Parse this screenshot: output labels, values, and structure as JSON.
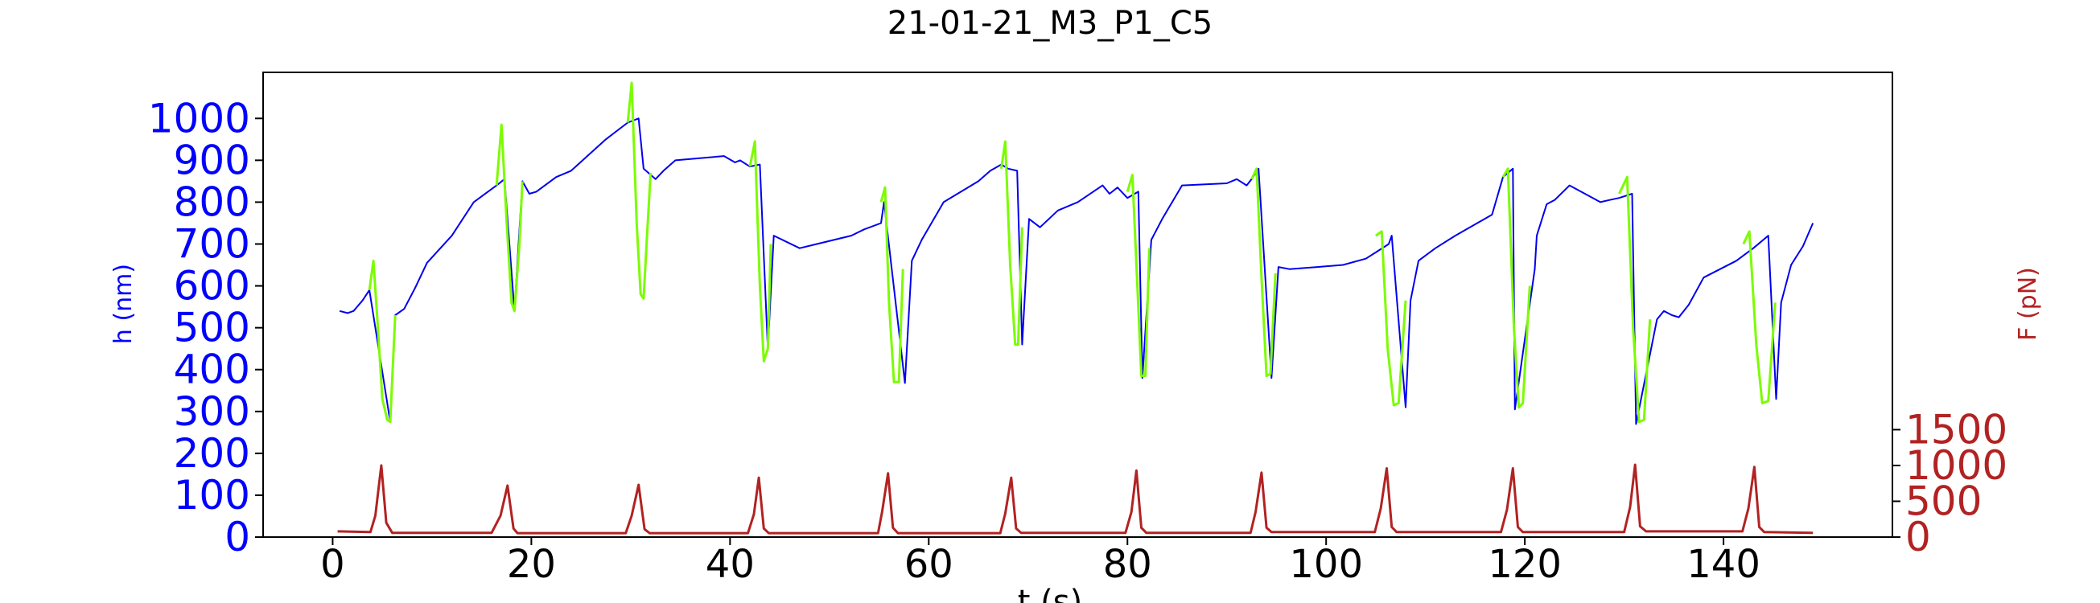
{
  "chart_data": {
    "type": "line",
    "title": "21-01-21_M3_P1_C5",
    "xlabel": "t (s)",
    "ylabel_left": "h (nm)",
    "ylabel_right": "F (pN)",
    "xlim": [
      -7,
      157
    ],
    "ylim_left": [
      0,
      1110
    ],
    "ylim_right": [
      0,
      6490
    ],
    "x_ticks": [
      "0",
      "20",
      "40",
      "60",
      "80",
      "100",
      "120",
      "140"
    ],
    "y_left_ticks": [
      "0",
      "100",
      "200",
      "300",
      "400",
      "500",
      "600",
      "700",
      "800",
      "900",
      "1000"
    ],
    "y_right_ticks": [
      "0",
      "500",
      "1000",
      "1500"
    ],
    "grid": false,
    "colors": {
      "height": "#0000ee",
      "height_pulse": "#7cfc00",
      "force": "#b22222",
      "left_axis": "#0000ff",
      "right_axis": "#b22222"
    },
    "series": [
      {
        "axis": "left",
        "color": "#0000ee",
        "x": [
          0.7,
          1.5,
          2.1,
          3.0,
          3.7,
          5.8,
          6.3,
          7.2,
          8.3,
          9.5,
          12,
          14.2,
          16.5,
          17.3,
          18.3,
          19.1,
          19.8,
          20.5,
          22.5,
          24,
          27.5,
          29.7,
          30.8,
          31.3,
          32.5,
          33.3,
          34.5,
          39.4,
          40.5,
          41,
          42,
          43.0,
          43.8,
          44.4,
          47,
          52.2,
          53.5,
          55.2,
          55.5,
          57.6,
          58.3,
          59.3,
          61.5,
          65,
          66.2,
          67.3,
          68.0,
          68.9,
          69.4,
          70.1,
          71.2,
          73,
          75,
          77.5,
          78.2,
          79,
          80,
          81.1,
          81.5,
          82.4,
          83.5,
          85.5,
          90,
          91,
          92,
          92.5,
          93.2,
          94.5,
          95.2,
          96.3,
          99.1,
          101.7,
          104,
          105,
          106.3,
          106.6,
          108.0,
          108.5,
          109.3,
          111,
          113,
          116.7,
          117.8,
          118.8,
          119.0,
          121.0,
          121.2,
          122.2,
          123.0,
          124.5,
          127.6,
          128.5,
          129.5,
          130.8,
          131.2,
          133.3,
          134,
          134.8,
          135.5,
          136.5,
          138,
          141.3,
          143,
          144.5,
          145.3,
          145.8,
          146.8,
          148,
          149.0
        ],
        "y": [
          540,
          535,
          540,
          565,
          590,
          275,
          530,
          545,
          595,
          655,
          720,
          800,
          840,
          855,
          540,
          850,
          820,
          825,
          860,
          875,
          950,
          990,
          1000,
          880,
          855,
          875,
          900,
          910,
          895,
          900,
          885,
          890,
          450,
          720,
          690,
          720,
          735,
          750,
          800,
          368,
          660,
          710,
          800,
          850,
          875,
          890,
          880,
          875,
          460,
          760,
          740,
          780,
          800,
          840,
          820,
          835,
          810,
          825,
          380,
          710,
          760,
          840,
          845,
          855,
          840,
          855,
          880,
          380,
          645,
          640,
          645,
          650,
          665,
          680,
          700,
          720,
          310,
          565,
          660,
          690,
          720,
          770,
          860,
          880,
          305,
          640,
          720,
          795,
          805,
          840,
          800,
          805,
          810,
          820,
          270,
          520,
          540,
          530,
          525,
          555,
          620,
          660,
          690,
          720,
          330,
          560,
          650,
          695,
          750
        ]
      },
      {
        "axis": "left",
        "color": "#7cfc00",
        "name": "",
        "segments": [
          {
            "x": [
              3.7,
              4.1,
              4.5,
              5.0,
              5.5,
              5.8,
              6.3
            ],
            "y": [
              590,
              660,
              520,
              330,
              280,
              275,
              530
            ]
          },
          {
            "x": [
              16.5,
              17.0,
              17.5,
              18.0,
              18.3,
              18.8,
              19.1
            ],
            "y": [
              840,
              985,
              760,
              560,
              540,
              700,
              850
            ]
          },
          {
            "x": [
              29.7,
              30.1,
              30.6,
              31.0,
              31.3,
              31.6,
              32.0
            ],
            "y": [
              990,
              1085,
              750,
              580,
              570,
              700,
              870
            ]
          },
          {
            "x": [
              42.0,
              42.5,
              43.0,
              43.4,
              43.8,
              44.1
            ],
            "y": [
              885,
              945,
              600,
              420,
              450,
              700
            ]
          },
          {
            "x": [
              55.2,
              55.6,
              56.0,
              56.5,
              57.0,
              57.4
            ],
            "y": [
              800,
              835,
              560,
              370,
              370,
              640
            ]
          },
          {
            "x": [
              67.3,
              67.7,
              68.2,
              68.7,
              69.0,
              69.4
            ],
            "y": [
              880,
              945,
              650,
              460,
              460,
              740
            ]
          },
          {
            "x": [
              80.0,
              80.5,
              81.0,
              81.4,
              81.8,
              82.2
            ],
            "y": [
              825,
              865,
              600,
              385,
              385,
              690
            ]
          },
          {
            "x": [
              92.5,
              93.0,
              93.5,
              94.0,
              94.4,
              94.9
            ],
            "y": [
              855,
              880,
              620,
              385,
              390,
              630
            ]
          },
          {
            "x": [
              105.0,
              105.6,
              106.2,
              106.8,
              107.3,
              108.0
            ],
            "y": [
              720,
              730,
              450,
              315,
              320,
              565
            ]
          },
          {
            "x": [
              117.8,
              118.3,
              118.9,
              119.4,
              119.8,
              120.5
            ],
            "y": [
              860,
              880,
              500,
              310,
              320,
              600
            ]
          },
          {
            "x": [
              129.5,
              130.3,
              130.9,
              131.5,
              132.0,
              132.6
            ],
            "y": [
              820,
              860,
              500,
              275,
              280,
              520
            ]
          },
          {
            "x": [
              142.0,
              142.6,
              143.3,
              143.9,
              144.5,
              145.2
            ],
            "y": [
              700,
              730,
              460,
              320,
              325,
              560
            ]
          }
        ]
      },
      {
        "axis": "right",
        "color": "#b22222",
        "x": [
          0.5,
          3.8,
          4.3,
          4.9,
          5.4,
          6.0,
          16.0,
          16.9,
          17.6,
          18.2,
          18.6,
          29.5,
          30.1,
          30.8,
          31.4,
          31.9,
          41.8,
          42.4,
          42.9,
          43.4,
          43.9,
          54.9,
          55.3,
          55.9,
          56.4,
          56.9,
          67.2,
          67.7,
          68.3,
          68.8,
          69.3,
          79.8,
          80.4,
          80.9,
          81.4,
          81.9,
          92.4,
          92.9,
          93.5,
          94.0,
          94.5,
          104.9,
          105.5,
          106.1,
          106.6,
          107.1,
          117.6,
          118.2,
          118.8,
          119.3,
          119.8,
          130.0,
          130.6,
          131.1,
          131.6,
          132.2,
          141.9,
          142.5,
          143.1,
          143.6,
          144.1,
          149.0
        ],
        "y": [
          80,
          70,
          300,
          1000,
          200,
          60,
          60,
          300,
          720,
          120,
          55,
          55,
          300,
          730,
          110,
          55,
          55,
          320,
          830,
          120,
          55,
          55,
          350,
          890,
          130,
          55,
          55,
          330,
          830,
          120,
          60,
          60,
          350,
          930,
          130,
          60,
          60,
          350,
          900,
          130,
          70,
          70,
          400,
          960,
          140,
          70,
          70,
          380,
          960,
          140,
          70,
          70,
          420,
          1010,
          150,
          80,
          80,
          400,
          980,
          140,
          70,
          60
        ]
      }
    ]
  }
}
